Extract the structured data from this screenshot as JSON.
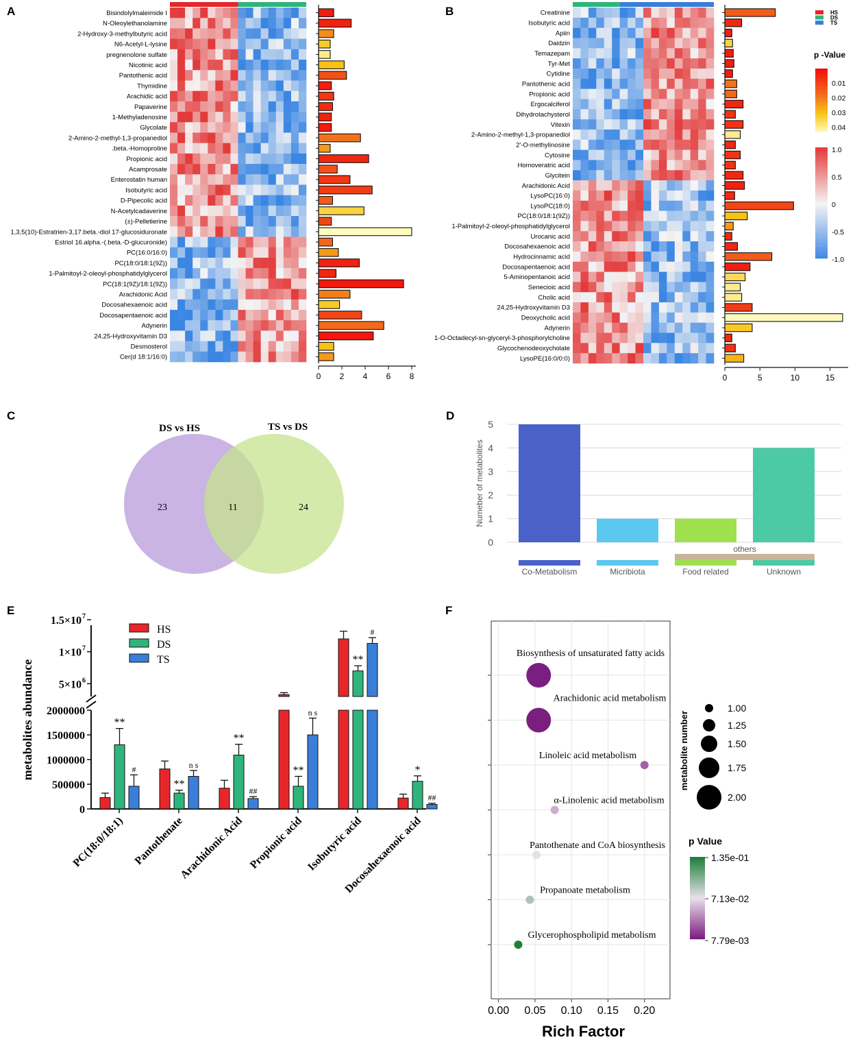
{
  "colors": {
    "hs": "#e8262a",
    "ds": "#2fb47c",
    "ts": "#3a7ed8",
    "heat_low": "#3b86e3",
    "heat_mid": "#f4f4f4",
    "heat_high": "#e33b3b",
    "venn_left": "#b79bd9",
    "venn_right": "#c6e38d",
    "venn_overlap": "#a3ad80",
    "d_bars": [
      "#4a61c8",
      "#5bc8ef",
      "#9fe04f",
      "#4ccaa5"
    ],
    "d_others": "#c8b59b",
    "f_sizes_bubble": "#000000",
    "pval_high": "#1e7f3a",
    "pval_mid": "#e8e0ea",
    "pval_low": "#7a1f80"
  },
  "chart_data": [
    {
      "panel": "A",
      "type": "bar",
      "orientation": "horizontal",
      "categories": [
        "Bisindolylmaleimide I",
        "N-Oleoylethanolamine",
        "2-Hydroxy-3-methylbutyric acid",
        "N6-Acetyl-L-lysine",
        "pregnenolone sulfate",
        "Nicotinic acid",
        "Pantothenic acid",
        "Thymidine",
        "Arachidic acid",
        "Papaverine",
        "1-Methyladenosine",
        "Glycolate",
        "2-Amino-2-methyl-1,3-propanediol",
        ".beta.-Homoproline",
        "Propionic acid",
        "Acamprosate",
        "Enterostatin human",
        "Isobutyric acid",
        "D-Pipecolic acid",
        "N-Acetylcadaverine",
        "(±)-Pelletierine",
        "1,3,5(10)-Estratrien-3,17.beta.-diol 17-glucosiduronate",
        "Estriol 16.alpha.-(.beta.-D-glucuronide)",
        "PC(16:0/16:0)",
        "PC(18:0/18:1(9Z))",
        "1-Palmitoyl-2-oleoyl-phosphatidylglycerol",
        "PC(18:1(9Z)/18:1(9Z))",
        "Arachidonic Acid",
        "Docosahexaenoic acid",
        "Docosapentaenoic acid",
        "Adynerin",
        "24,25-Hydroxyvitamin D3",
        "Desmosterol",
        "Cer(d 18:1/16:0)"
      ],
      "values": [
        1.3,
        2.8,
        1.3,
        1.0,
        1.0,
        2.2,
        2.4,
        1.1,
        1.3,
        1.2,
        1.1,
        1.1,
        3.6,
        1.0,
        4.3,
        1.6,
        2.7,
        4.6,
        1.2,
        3.9,
        1.1,
        8.0,
        1.2,
        1.7,
        3.5,
        1.5,
        7.3,
        2.7,
        1.8,
        3.7,
        5.6,
        4.7,
        1.3,
        1.3
      ],
      "pvalues": [
        0.008,
        0.009,
        0.028,
        0.038,
        0.046,
        0.036,
        0.018,
        0.008,
        0.013,
        0.011,
        0.009,
        0.008,
        0.024,
        0.03,
        0.01,
        0.018,
        0.013,
        0.014,
        0.02,
        0.04,
        0.016,
        0.05,
        0.022,
        0.03,
        0.009,
        0.01,
        0.007,
        0.026,
        0.038,
        0.016,
        0.023,
        0.007,
        0.036,
        0.03
      ],
      "xlim": [
        0,
        8
      ],
      "xticks": [
        "0",
        "2",
        "4",
        "6",
        "8"
      ],
      "heat_columns": 18,
      "panel_label": "A"
    },
    {
      "panel": "B",
      "type": "bar",
      "orientation": "horizontal",
      "categories": [
        "Creatinine",
        "Isobutyric acid",
        "Apiin",
        "Daidzin",
        "Temazepam",
        "Tyr-Met",
        "Cytidine",
        "Pantothenic acid",
        "Propionic acid",
        "Ergocalciferol",
        "Dihydrotachysterol",
        "Vitexin",
        "2-Amino-2-methyl-1,3-propanediol",
        "2'-O-methylinosine",
        "Cytosine",
        "Homoveratric acid",
        "Glycitein",
        "Arachidonic Acid",
        "LysoPC(16:0)",
        "LysoPC(18:0)",
        "PC(18:0/18:1(9Z))",
        "1-Palmitoyl-2-oleoyl-phosphatidylglycerol",
        "Urocanic acid",
        "Docosahexaenoic acid",
        "Hydrocinnamic acid",
        "Docosapentaenoic acid",
        "5-Aminopentanoic acid",
        "Senecioic acid",
        "Cholic acid",
        "24,25-Hydroxyvitamin D3",
        "Deoxycholic acid",
        "Adynerin",
        "1-O-Octadecyl-sn-glyceryl-3-phosphorylcholine",
        "Glycochenodeoxycholate",
        "LysoPE(16:0/0:0)"
      ],
      "values": [
        7.2,
        2.4,
        1.0,
        1.1,
        1.2,
        1.3,
        1.1,
        1.7,
        1.7,
        2.6,
        1.5,
        2.6,
        2.2,
        1.5,
        2.2,
        1.5,
        2.6,
        2.8,
        1.4,
        9.8,
        3.2,
        1.2,
        1.0,
        1.8,
        6.7,
        3.6,
        2.9,
        2.2,
        2.4,
        3.9,
        16.8,
        3.9,
        1.0,
        1.5,
        2.7
      ],
      "pvalues": [
        0.02,
        0.01,
        0.008,
        0.04,
        0.008,
        0.008,
        0.008,
        0.024,
        0.022,
        0.01,
        0.012,
        0.012,
        0.046,
        0.01,
        0.012,
        0.012,
        0.01,
        0.009,
        0.01,
        0.016,
        0.036,
        0.03,
        0.01,
        0.01,
        0.02,
        0.008,
        0.042,
        0.046,
        0.046,
        0.014,
        0.05,
        0.038,
        0.01,
        0.012,
        0.034
      ],
      "xlim": [
        0,
        17
      ],
      "xticks": [
        "0",
        "5",
        "10",
        "15"
      ],
      "heat_columns": 18,
      "panel_label": "B"
    },
    {
      "panel": "C",
      "type": "venn",
      "panel_label": "C",
      "sets": [
        "DS vs HS",
        "TS vs DS"
      ],
      "left_only": "23",
      "overlap": "11",
      "right_only": "24"
    },
    {
      "panel": "D",
      "type": "bar",
      "panel_label": "D",
      "categories": [
        "Co-Metabolism",
        "Micribiota",
        "Food related",
        "Unknown"
      ],
      "values": [
        5,
        1,
        1,
        4
      ],
      "ylabel": "Numeber of metabolites",
      "ylim": [
        0,
        5
      ],
      "yticks": [
        "0",
        "1",
        "2",
        "3",
        "4",
        "5"
      ],
      "group_label": "others"
    },
    {
      "panel": "E",
      "type": "bar",
      "panel_label": "E",
      "categories": [
        "PC(18:0/18:1)",
        "Pantothenate",
        "Arachidonic Acid",
        "Propionic acid",
        "Isobutyric acid",
        "Docosahexaenoic acid"
      ],
      "series": [
        {
          "name": "HS",
          "values": [
            230000,
            810000,
            420000,
            3300000,
            12000000,
            220000
          ],
          "errors": [
            90000,
            160000,
            160000,
            300000,
            1200000,
            80000
          ],
          "marks": [
            "",
            "",
            "",
            "",
            "",
            ""
          ]
        },
        {
          "name": "DS",
          "values": [
            1300000,
            320000,
            1090000,
            460000,
            7000000,
            560000
          ],
          "errors": [
            330000,
            60000,
            220000,
            200000,
            800000,
            110000
          ],
          "marks": [
            "**",
            "**",
            "**",
            "**",
            "**",
            "*"
          ]
        },
        {
          "name": "TS",
          "values": [
            460000,
            660000,
            210000,
            1500000,
            11300000,
            90000
          ],
          "errors": [
            230000,
            120000,
            40000,
            340000,
            900000,
            25000
          ],
          "marks": [
            "#",
            "n s",
            "##",
            "n s",
            "#",
            "##"
          ]
        }
      ],
      "ylabel": "metabolites abundance",
      "yticks_lower": [
        "0",
        "500000",
        "1000000",
        "1500000",
        "2000000"
      ],
      "yticks_upper": [
        "5×10",
        "1×10",
        "1.5×10"
      ],
      "yticks_upper_exp": [
        "6",
        "7",
        "7"
      ],
      "lower_range": [
        0,
        2000000
      ],
      "upper_range": [
        3000000,
        15000000
      ]
    },
    {
      "panel": "F",
      "type": "scatter",
      "panel_label": "F",
      "categories": [
        "Biosynthesis of unsaturated fatty acids",
        "Arachidonic acid metabolism",
        "Linoleic acid metabolism",
        "α-Linolenic acid metabolism",
        "Pantothenate and CoA biosynthesis",
        "Propanoate metabolism",
        "Glycerophospholipid metabolism"
      ],
      "x": [
        0.055,
        0.055,
        0.2,
        0.077,
        0.052,
        0.043,
        0.027
      ],
      "size": [
        2,
        2,
        1,
        1,
        1,
        1,
        1
      ],
      "pvalues": [
        0.0078,
        0.0078,
        0.03,
        0.055,
        0.072,
        0.09,
        0.135
      ],
      "xlabel": "Rich Factor",
      "xlim": [
        -0.01,
        0.235
      ],
      "xticks": [
        "0.00",
        "0.05",
        "0.10",
        "0.15",
        "0.20"
      ],
      "size_legend_title": "metabolite number",
      "size_legend": [
        "1.00",
        "1.25",
        "1.50",
        "1.75",
        "2.00"
      ],
      "color_legend_title": "p Value",
      "color_legend": [
        "1.35e-01",
        "7.13e-02",
        "7.79e-03"
      ]
    }
  ],
  "legend_B": {
    "groups": [
      "HS",
      "DS",
      "TS"
    ],
    "pvalue_title": "p -Value",
    "pvalue_ticks": [
      "0.01",
      "0.02",
      "0.03",
      "0.04"
    ],
    "corr_ticks": [
      "1.0",
      "0.5",
      "0",
      "-0.5",
      "-1.0"
    ]
  },
  "legend_E": [
    "HS",
    "DS",
    "TS"
  ]
}
